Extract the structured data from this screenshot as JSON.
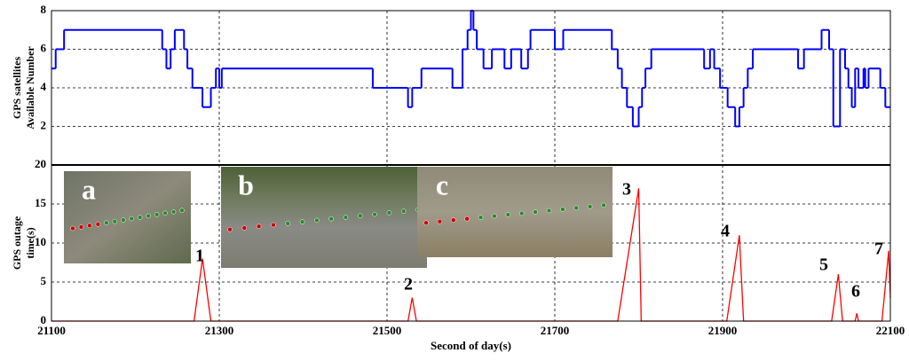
{
  "chart_data": [
    {
      "type": "step",
      "ylabel": [
        "GPS satellites",
        "Available Number"
      ],
      "color": "#0000ff",
      "grid": true,
      "xlim": [
        21100,
        22100
      ],
      "xticks": [
        21100,
        21300,
        21500,
        21700,
        21900,
        22100
      ],
      "ylim": [
        0,
        8
      ],
      "yticks": [
        2,
        4,
        6,
        8
      ],
      "x": [
        21100,
        21105,
        21115,
        21232,
        21237,
        21242,
        21247,
        21258,
        21262,
        21268,
        21280,
        21290,
        21296,
        21300,
        21303,
        21483,
        21525,
        21530,
        21541,
        21578,
        21590,
        21596,
        21600,
        21603,
        21607,
        21615,
        21625,
        21640,
        21648,
        21660,
        21668,
        21671,
        21700,
        21710,
        21768,
        21775,
        21780,
        21786,
        21793,
        21800,
        21804,
        21808,
        21815,
        21878,
        21885,
        21890,
        21897,
        21906,
        21915,
        21920,
        21925,
        21930,
        21936,
        21990,
        21997,
        22018,
        22027,
        22032,
        22040,
        22046,
        22050,
        22054,
        22058,
        22062,
        22068,
        22070,
        22074,
        22088,
        22094,
        22100
      ],
      "values": [
        5,
        6,
        7,
        6,
        5,
        6,
        7,
        6,
        5,
        4,
        3,
        4,
        5,
        4,
        5,
        4,
        3,
        4,
        5,
        4,
        6,
        7,
        8,
        7,
        6,
        5,
        6,
        5,
        6,
        5,
        6,
        7,
        6,
        7,
        6,
        5,
        4,
        3,
        2,
        3,
        4,
        5,
        6,
        5,
        6,
        5,
        4,
        3,
        2,
        3,
        4,
        5,
        6,
        5,
        6,
        7,
        6,
        2,
        6,
        5,
        4,
        3,
        5,
        4,
        5,
        4,
        5,
        4,
        3,
        3
      ]
    },
    {
      "type": "line",
      "xlabel": "Second of day(s)",
      "ylabel": [
        "GPS outage",
        "time(s)"
      ],
      "color": "#ff0000",
      "grid": true,
      "xlim": [
        21100,
        22100
      ],
      "xticks": [
        21100,
        21300,
        21500,
        21700,
        21900,
        22100
      ],
      "ylim": [
        0,
        20
      ],
      "yticks": [
        0,
        5,
        10,
        15,
        20
      ],
      "x": [
        21100,
        21270,
        21280,
        21290,
        21525,
        21530,
        21535,
        21775,
        21800,
        21803,
        21905,
        21920,
        21925,
        22030,
        22038,
        22043,
        22058,
        22060,
        22062,
        22090,
        22098,
        22100
      ],
      "values": [
        0,
        0,
        8,
        0,
        0,
        3,
        0,
        0,
        17,
        0,
        0,
        11,
        0,
        0,
        6,
        0,
        0,
        1,
        0,
        0,
        9,
        3
      ],
      "annotations": [
        "1",
        "2",
        "3",
        "4",
        "5",
        "6",
        "7"
      ],
      "insets": [
        "a",
        "b",
        "c"
      ]
    }
  ]
}
